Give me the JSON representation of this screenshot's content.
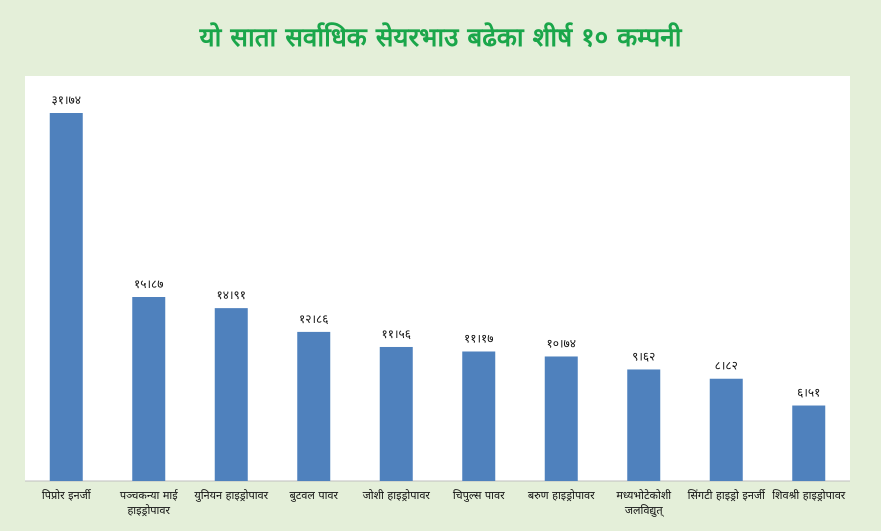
{
  "chart_data": {
    "type": "bar",
    "title": "यो साता सर्वाधिक सेयरभाउ बढेका शीर्ष १० कम्पनी",
    "categories": [
      "पिप्रोर इनर्जी",
      "पञ्चकन्या माई हाइड्रोपावर",
      "युनियन हाइड्रोपावर",
      "बुटवल पावर",
      "जोशी हाइड्रोपावर",
      "चिपुल्स पावर",
      "बरुण हाइड्रोपावर",
      "मध्यभोटेकोशी जलविद्युत्",
      "सिंगटी हाइड्रो इनर्जी",
      "शिवश्री हाइड्रोपावर"
    ],
    "values": [
      31.74,
      15.87,
      14.91,
      12.86,
      11.56,
      11.17,
      10.74,
      9.62,
      8.82,
      6.51
    ],
    "value_labels": [
      "३१।७४",
      "१५।८७",
      "१४।९१",
      "१२।८६",
      "११।५६",
      "११।१७",
      "१०।७४",
      "९।६२",
      "८।८२",
      "६।५१"
    ],
    "ylim": [
      0,
      34
    ],
    "bar_color": "#4f81bd",
    "title_color": "#1aa64a",
    "grid": false,
    "legend": "none"
  }
}
